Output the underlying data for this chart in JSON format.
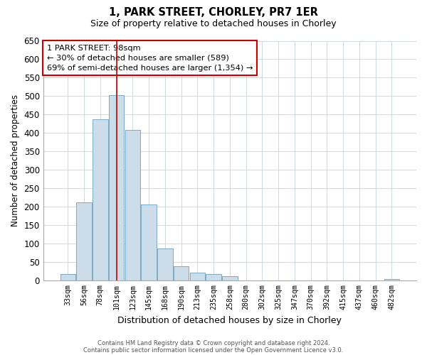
{
  "title": "1, PARK STREET, CHORLEY, PR7 1ER",
  "subtitle": "Size of property relative to detached houses in Chorley",
  "xlabel": "Distribution of detached houses by size in Chorley",
  "ylabel": "Number of detached properties",
  "bar_color": "#ccdce8",
  "bar_edge_color": "#7aaac8",
  "background_color": "#ffffff",
  "grid_color": "#c8d4dc",
  "categories": [
    "33sqm",
    "56sqm",
    "78sqm",
    "101sqm",
    "123sqm",
    "145sqm",
    "168sqm",
    "190sqm",
    "213sqm",
    "235sqm",
    "258sqm",
    "280sqm",
    "302sqm",
    "325sqm",
    "347sqm",
    "370sqm",
    "392sqm",
    "415sqm",
    "437sqm",
    "460sqm",
    "482sqm"
  ],
  "values": [
    18,
    213,
    437,
    502,
    408,
    207,
    87,
    40,
    22,
    18,
    12,
    0,
    0,
    0,
    0,
    0,
    0,
    0,
    0,
    0,
    5
  ],
  "ylim": [
    0,
    650
  ],
  "yticks": [
    0,
    50,
    100,
    150,
    200,
    250,
    300,
    350,
    400,
    450,
    500,
    550,
    600,
    650
  ],
  "vline_x": 3,
  "vline_color": "#cc0000",
  "annotation_title": "1 PARK STREET: 98sqm",
  "annotation_line1": "← 30% of detached houses are smaller (589)",
  "annotation_line2": "69% of semi-detached houses are larger (1,354) →",
  "annotation_box_color": "#ffffff",
  "annotation_box_edge": "#cc0000",
  "footnote1": "Contains HM Land Registry data © Crown copyright and database right 2024.",
  "footnote2": "Contains public sector information licensed under the Open Government Licence v3.0."
}
